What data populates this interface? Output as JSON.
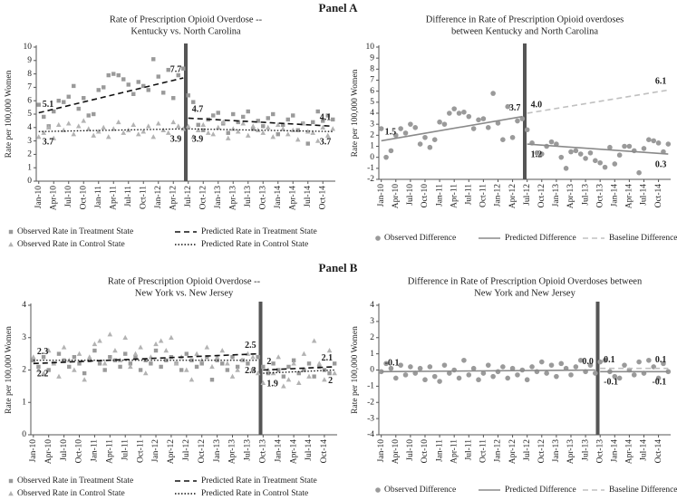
{
  "panels": [
    "Panel A",
    "Panel B"
  ],
  "chart_data": [
    {
      "type": "interrupted-scatter",
      "title": [
        "Rate of Prescription Opioid Overdose --",
        "Kentucky vs. North Carolina"
      ],
      "ylabel": "Rate per 100,000 Women",
      "categories": [
        "Jan-10",
        null,
        null,
        "Apr-10",
        null,
        null,
        "Jul-10",
        null,
        null,
        "Oct-10",
        null,
        null,
        "Jan-11",
        null,
        null,
        "Apr-11",
        null,
        null,
        "Jul-11",
        null,
        null,
        "Oct-11",
        null,
        null,
        "Jan-12",
        null,
        null,
        "Apr-12",
        null,
        null,
        "Jul-12",
        null,
        null,
        "Oct-12",
        null,
        null,
        "Jan-13",
        null,
        null,
        "Apr-13",
        null,
        null,
        "Jul-13",
        null,
        null,
        "Oct-13",
        null,
        null,
        "Jan-14",
        null,
        null,
        "Apr-14",
        null,
        null,
        "Jul-14",
        null,
        null,
        "Oct-14",
        null,
        null
      ],
      "intervention": "Jul-12",
      "ylim": [
        0,
        10
      ],
      "yticks": [
        0,
        1,
        2,
        3,
        4,
        5,
        6,
        7,
        8,
        9,
        10
      ],
      "legend_columns": 2,
      "series": [
        {
          "name": "Observed Rate in Treatment State",
          "marker": "square",
          "color": "#9a9a9a",
          "values": [
            5.7,
            4.8,
            4.1,
            5.2,
            6.0,
            5.9,
            6.3,
            7.1,
            5.4,
            6.2,
            4.9,
            5.0,
            6.8,
            7.0,
            7.9,
            8.0,
            7.9,
            7.6,
            7.2,
            6.5,
            7.4,
            7.1,
            6.8,
            9.1,
            7.8,
            6.6,
            8.3,
            6.2,
            7.9,
            8.4,
            6.4,
            5.9,
            4.2,
            3.8,
            4.6,
            4.9,
            5.1,
            4.3,
            3.6,
            5.0,
            4.4,
            4.8,
            5.2,
            3.9,
            4.5,
            4.1,
            4.7,
            5.0,
            3.5,
            4.2,
            4.6,
            4.9,
            3.8,
            4.3,
            2.8,
            4.4,
            5.2,
            4.5,
            4.9,
            4.6
          ]
        },
        {
          "name": "Observed Rate in Control State",
          "marker": "triangle",
          "color": "#b3b3b3",
          "values": [
            3.3,
            3.6,
            4.0,
            3.2,
            4.2,
            3.8,
            4.3,
            3.5,
            4.1,
            4.5,
            3.9,
            3.4,
            3.7,
            4.0,
            3.3,
            3.9,
            4.4,
            3.6,
            3.8,
            4.2,
            3.5,
            3.7,
            4.1,
            3.3,
            4.3,
            3.8,
            3.6,
            4.4,
            4.1,
            3.9,
            4.1,
            3.3,
            3.8,
            4.2,
            3.6,
            3.5,
            4.0,
            4.4,
            3.2,
            3.9,
            3.7,
            4.3,
            3.4,
            4.1,
            3.8,
            3.6,
            4.0,
            3.3,
            4.2,
            3.9,
            3.5,
            3.8,
            3.1,
            4.3,
            3.7,
            3.6,
            3.0,
            4.0,
            3.4,
            3.9
          ]
        }
      ],
      "fits": [
        {
          "name": "Predicted Rate in Treatment State",
          "dash": "dashed",
          "color": "#111111",
          "segments": [
            {
              "period": "pre",
              "values": [
                5.1,
                7.7
              ]
            },
            {
              "period": "post",
              "values": [
                4.7,
                4.1
              ]
            }
          ]
        },
        {
          "name": "Predicted Rate in Control State",
          "dash": "dotted",
          "color": "#111111",
          "segments": [
            {
              "period": "pre",
              "values": [
                3.7,
                3.9
              ]
            },
            {
              "period": "post",
              "values": [
                3.9,
                3.7
              ]
            }
          ]
        }
      ]
    },
    {
      "type": "interrupted-scatter",
      "title": [
        "Difference in Rate of Prescription Opioid overdoses",
        "between Kentucky and North Carolina"
      ],
      "ylabel": "Rate per 100,000 Women",
      "categories": [
        "Jan-10",
        null,
        null,
        "Apr-10",
        null,
        null,
        "Jul-10",
        null,
        null,
        "Oct-10",
        null,
        null,
        "Jan-11",
        null,
        null,
        "Apr-11",
        null,
        null,
        "Jul-11",
        null,
        null,
        "Oct-11",
        null,
        null,
        "Jan-12",
        null,
        null,
        "Apr-12",
        null,
        null,
        "Jul-12",
        null,
        null,
        "Oct-12",
        null,
        null,
        "Jan-13",
        null,
        null,
        "Apr-13",
        null,
        null,
        "Jul-13",
        null,
        null,
        "Oct-13",
        null,
        null,
        "Jan-14",
        null,
        null,
        "Apr-14",
        null,
        null,
        "Jul-14",
        null,
        null,
        "Oct-14",
        null,
        null
      ],
      "intervention": "Jul-12",
      "ylim": [
        -2,
        10
      ],
      "yticks": [
        -2,
        -1,
        0,
        1,
        2,
        3,
        4,
        5,
        6,
        7,
        8,
        9,
        10
      ],
      "legend_columns": 3,
      "series": [
        {
          "name": "Observed Difference",
          "marker": "circle",
          "color": "#9a9a9a",
          "values": [
            2.6,
            0.0,
            0.6,
            2.0,
            2.6,
            2.2,
            3.0,
            2.7,
            1.2,
            1.8,
            0.9,
            1.6,
            3.2,
            3.0,
            4.0,
            4.4,
            4.0,
            4.1,
            3.7,
            2.6,
            3.4,
            3.5,
            2.7,
            5.8,
            3.1,
            1.6,
            4.6,
            1.8,
            3.3,
            3.5,
            2.5,
            1.3,
            0.4,
            0.3,
            1.0,
            1.4,
            1.2,
            0.0,
            -1.0,
            0.5,
            0.6,
            0.3,
            -0.1,
            0.4,
            -0.3,
            -0.5,
            -0.9,
            0.9,
            -0.6,
            0.2,
            1.0,
            1.0,
            0.6,
            -1.4,
            0.8,
            1.6,
            1.5,
            1.3,
            0.5,
            1.2
          ]
        }
      ],
      "fits": [
        {
          "name": "Predicted Difference",
          "dash": "solid",
          "color": "#8a8a8a",
          "segments": [
            {
              "period": "pre",
              "values": [
                1.5,
                3.7
              ]
            },
            {
              "period": "post",
              "values": [
                1.2,
                0.3
              ]
            }
          ]
        },
        {
          "name": "Baseline Difference",
          "dash": "dashed",
          "color": "#c0c0c0",
          "segments": [
            {
              "period": "post",
              "values": [
                4,
                6.1
              ],
              "value_labels": [
                "4.0",
                "6.1"
              ]
            }
          ]
        }
      ]
    },
    {
      "type": "interrupted-scatter",
      "title": [
        "Rate of Prescription Opioid Overdose --",
        "New York vs. New Jersey"
      ],
      "ylabel": "Rate per 100,000 Women",
      "categories": [
        "Jan-10",
        null,
        null,
        "Apr-10",
        null,
        null,
        "Jul-10",
        null,
        null,
        "Oct-10",
        null,
        null,
        "Jan-11",
        null,
        null,
        "Apr-11",
        null,
        null,
        "Jul-11",
        null,
        null,
        "Oct-11",
        null,
        null,
        "Jan-12",
        null,
        null,
        "Apr-12",
        null,
        null,
        "Jul-12",
        null,
        null,
        "Oct-12",
        null,
        null,
        "Jan-13",
        null,
        null,
        "Apr-13",
        null,
        null,
        "Jul-13",
        null,
        null,
        "Oct-13",
        null,
        null,
        "Jan-14",
        null,
        null,
        "Apr-14",
        null,
        null,
        "Jul-14",
        null,
        null,
        "Oct-14",
        null,
        null
      ],
      "intervention": "Oct-13",
      "ylim": [
        0,
        4
      ],
      "yticks": [
        0,
        1,
        2,
        3,
        4
      ],
      "legend_columns": 2,
      "series": [
        {
          "name": "Observed Rate in Treatment State",
          "marker": "square",
          "color": "#9a9a9a",
          "values": [
            2.3,
            2.1,
            2.4,
            2.0,
            2.2,
            2.5,
            2.3,
            2.1,
            2.4,
            2.2,
            1.9,
            2.3,
            2.6,
            2.2,
            2.0,
            2.4,
            2.3,
            2.1,
            2.5,
            2.2,
            2.4,
            2.0,
            2.3,
            2.2,
            2.6,
            2.1,
            2.3,
            2.4,
            2.2,
            2.0,
            2.5,
            2.3,
            2.1,
            2.2,
            2.4,
            1.7,
            2.3,
            2.2,
            2.0,
            2.4,
            2.1,
            2.3,
            2.2,
            2.0,
            2.4,
            2.1,
            1.9,
            2.2,
            2.0,
            1.8,
            2.1,
            2.3,
            1.9,
            2.0,
            2.2,
            1.8,
            2.1,
            2.0,
            1.9,
            2.2
          ]
        },
        {
          "name": "Observed Rate in Control State",
          "marker": "triangle",
          "color": "#b3b3b3",
          "values": [
            2.4,
            2.0,
            1.9,
            2.6,
            2.2,
            1.8,
            2.7,
            2.3,
            2.0,
            2.5,
            1.7,
            2.4,
            2.8,
            2.9,
            2.2,
            3.1,
            2.6,
            2.3,
            3.0,
            2.1,
            2.5,
            2.7,
            1.9,
            2.4,
            2.8,
            2.9,
            2.6,
            3.0,
            2.2,
            2.4,
            2.0,
            1.7,
            2.5,
            2.3,
            2.7,
            2.1,
            2.4,
            2.6,
            2.2,
            1.8,
            2.0,
            2.3,
            2.5,
            2.4,
            1.9,
            1.6,
            2.0,
            1.9,
            2.4,
            1.5,
            1.7,
            2.2,
            1.6,
            2.5,
            1.8,
            2.9,
            2.2,
            1.7,
            2.6,
            1.9
          ]
        }
      ],
      "fits": [
        {
          "name": "Predicted Rate in Treatment State",
          "dash": "dashed",
          "color": "#111111",
          "segments": [
            {
              "period": "pre",
              "values": [
                2.2,
                2.5
              ]
            },
            {
              "period": "post",
              "values": [
                2.0,
                2.1
              ]
            }
          ]
        },
        {
          "name": "Predicted Rate in Control State",
          "dash": "dotted",
          "color": "#111111",
          "segments": [
            {
              "period": "pre",
              "values": [
                2.3,
                2.3
              ]
            },
            {
              "period": "post",
              "values": [
                1.9,
                2.0
              ]
            }
          ]
        }
      ]
    },
    {
      "type": "interrupted-scatter",
      "title": [
        "Difference in Rate of Prescription Opioid Overdoses between",
        "New York and New Jersey"
      ],
      "ylabel": "Rate per 100,000 Women",
      "categories": [
        "Jan-10",
        null,
        null,
        "Apr-10",
        null,
        null,
        "Jul-10",
        null,
        null,
        "Oct-10",
        null,
        null,
        "Jan-11",
        null,
        null,
        "Apr-11",
        null,
        null,
        "Jul-11",
        null,
        null,
        "Oct-11",
        null,
        null,
        "Jan-12",
        null,
        null,
        "Apr-12",
        null,
        null,
        "Jul-12",
        null,
        null,
        "Oct-12",
        null,
        null,
        "Jan-13",
        null,
        null,
        "Apr-13",
        null,
        null,
        "Jul-13",
        null,
        null,
        "Oct-13",
        null,
        null,
        "Jan-14",
        null,
        null,
        "Apr-14",
        null,
        null,
        "Jul-14",
        null,
        null,
        "Oct-14",
        null,
        null
      ],
      "intervention": "Oct-13",
      "ylim": [
        -4,
        4
      ],
      "yticks": [
        -4,
        -3,
        -2,
        -1,
        0,
        1,
        2,
        3,
        4
      ],
      "legend_columns": 3,
      "series": [
        {
          "name": "Observed Difference",
          "marker": "circle",
          "color": "#9a9a9a",
          "values": [
            -0.1,
            0.4,
            0.1,
            -0.5,
            0.3,
            -0.3,
            0.2,
            -0.2,
            0.1,
            -0.6,
            0.2,
            -0.4,
            -0.7,
            0.3,
            -0.2,
            0.0,
            -0.5,
            0.6,
            -0.3,
            0.1,
            -0.6,
            -0.2,
            0.3,
            -0.4,
            -0.1,
            0.2,
            -0.5,
            0.1,
            -0.3,
            0.0,
            -0.6,
            0.2,
            -0.1,
            0.5,
            -0.2,
            0.3,
            -0.4,
            0.4,
            0.1,
            -0.3,
            0.2,
            0.6,
            -0.1,
            0.3,
            -0.2,
            0.5,
            0.6,
            -0.1,
            -0.4,
            -0.5,
            0.3,
            0.0,
            -0.3,
            0.5,
            -0.2,
            0.6,
            0.2,
            -0.5,
            0.4,
            -0.1
          ]
        }
      ],
      "fits": [
        {
          "name": "Predicted Difference",
          "dash": "solid",
          "color": "#8a8a8a",
          "segments": [
            {
              "period": "pre",
              "values": [
                -0.1,
                0
              ],
              "value_labels": [
                "-0.1",
                "0.0"
              ]
            },
            {
              "period": "post",
              "values": [
                -0.1,
                -0.1
              ]
            }
          ]
        },
        {
          "name": "Baseline Difference",
          "dash": "dashed",
          "color": "#c0c0c0",
          "segments": [
            {
              "period": "post",
              "values": [
                0.1,
                0.1
              ]
            }
          ]
        }
      ]
    }
  ]
}
